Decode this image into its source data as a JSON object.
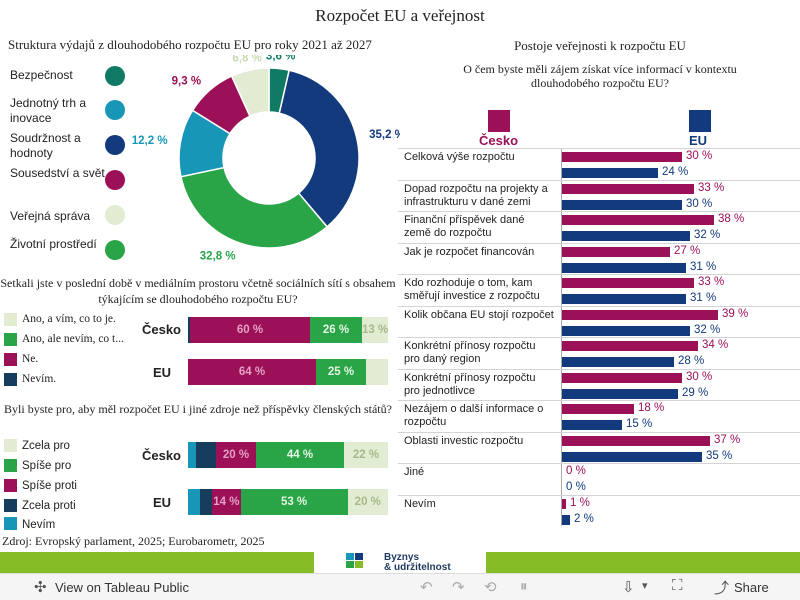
{
  "title": "Rozpočet EU a veřejnost",
  "colors": {
    "czech": "#9b1057",
    "eu": "#123a7c",
    "teal": "#117a65",
    "cyan": "#1896b8",
    "navy": "#123a7c",
    "maroon": "#9b1057",
    "pale": "#e2ecd2",
    "green": "#29a446",
    "dark": "#173d5c"
  },
  "donut": {
    "title": "Struktura výdajů z dlouhodobého rozpočtu EU pro roky 2021 až 2027",
    "legend": [
      "Bezpečnost",
      "Jednotný trh a inovace",
      "Soudržnost a hodnoty",
      "Sousedství a svět",
      "Veřejná správa",
      "Životní prostředí"
    ]
  },
  "media": {
    "question": "Setkali jste v poslední době v mediálním prostoru včetně sociálních sítí s obsahem týkajícím se dlouhodobého rozpočtu EU?",
    "legend": [
      "Ano, a vím, co to je.",
      "Ano, ale nevím, co t...",
      "Ne.",
      "Nevím."
    ],
    "rows": [
      "Česko",
      "EU"
    ]
  },
  "sources": {
    "question": "Byli byste pro, aby měl rozpočet EU i jiné zdroje než příspěvky členských států?",
    "legend": [
      "Zcela pro",
      "Spíše pro",
      "Spíše proti",
      "Zcela proti",
      "Nevím"
    ],
    "rows": [
      "Česko",
      "EU"
    ]
  },
  "right": {
    "title": "Postoje veřejnosti k rozpočtu EU",
    "subtitle": "O čem byste měli zájem získat více informací v kontextu dlouhodobého rozpočtu EU?",
    "legend": [
      "Česko",
      "EU"
    ]
  },
  "source_note": "Zdroj: Evropský parlament, 2025; Eurobarometr, 2025",
  "footer": {
    "logo_line1": "Byznys",
    "logo_line2": "& udržitelnost",
    "view_label": "View on Tableau Public",
    "share_label": "Share"
  },
  "chart_data": [
    {
      "type": "pie",
      "title": "Struktura výdajů z dlouhodobého rozpočtu EU pro roky 2021 až 2027",
      "categories": [
        "Bezpečnost",
        "Soudržnost a hodnoty",
        "Životní prostředí",
        "Jednotný trh a inovace",
        "Sousedství a svět",
        "Veřejná správa"
      ],
      "values": [
        3.6,
        35.2,
        32.8,
        12.2,
        9.3,
        6.8
      ],
      "labels": [
        "3,6 %",
        "35,2 %",
        "32,8 %",
        "12,2 %",
        "9,3 %",
        "6,8 %"
      ],
      "colors": [
        "#117a65",
        "#123a7c",
        "#29a446",
        "#1896b8",
        "#9b1057",
        "#e2ecd2"
      ],
      "label_colors": [
        "#117a65",
        "#123a7c",
        "#29a446",
        "#1896b8",
        "#9b1057",
        "#c9d9b2"
      ]
    },
    {
      "type": "bar",
      "stacked": true,
      "orientation": "horizontal",
      "title": "Setkali jste v poslední době v mediálním prostoru včetně sociálních sítí s obsahem týkajícím se dlouhodobého rozpočtu EU?",
      "categories": [
        "Česko",
        "EU"
      ],
      "series": [
        {
          "name": "Nevím.",
          "values": [
            1,
            0
          ],
          "labels": [
            "",
            ""
          ],
          "color": "#173d5c"
        },
        {
          "name": "Ne.",
          "values": [
            60,
            64
          ],
          "labels": [
            "60 %",
            "64 %"
          ],
          "color": "#9b1057"
        },
        {
          "name": "Ano, ale nevím, co t...",
          "values": [
            26,
            25
          ],
          "labels": [
            "26 %",
            "25 %"
          ],
          "color": "#29a446"
        },
        {
          "name": "Ano, a vím, co to je.",
          "values": [
            13,
            11
          ],
          "labels": [
            "13 %",
            ""
          ],
          "color": "#e2ecd2"
        }
      ]
    },
    {
      "type": "bar",
      "stacked": true,
      "orientation": "horizontal",
      "title": "Byli byste pro, aby měl rozpočet EU i jiné zdroje než příspěvky členských států?",
      "categories": [
        "Česko",
        "EU"
      ],
      "series": [
        {
          "name": "Nevím",
          "values": [
            4,
            6
          ],
          "labels": [
            "",
            ""
          ],
          "color": "#1896b8"
        },
        {
          "name": "Zcela proti",
          "values": [
            10,
            6
          ],
          "labels": [
            "",
            ""
          ],
          "color": "#173d5c"
        },
        {
          "name": "Spíše proti",
          "values": [
            20,
            14
          ],
          "labels": [
            "20 %",
            "14 %"
          ],
          "color": "#9b1057"
        },
        {
          "name": "Spíše pro",
          "values": [
            44,
            53
          ],
          "labels": [
            "44 %",
            "53 %"
          ],
          "color": "#29a446"
        },
        {
          "name": "Zcela pro",
          "values": [
            22,
            20
          ],
          "labels": [
            "22 %",
            "20 %"
          ],
          "color": "#e2ecd2"
        }
      ]
    },
    {
      "type": "bar",
      "orientation": "horizontal",
      "title": "O čem byste měli zájem získat více informací v kontextu dlouhodobého rozpočtu EU?",
      "categories": [
        "Celková výše rozpočtu",
        "Dopad rozpočtu na projekty a infrastrukturu v dané zemi",
        "Finanční příspěvek dané země do rozpočtu",
        "Jak je rozpočet financován",
        "Kdo rozhoduje o tom, kam směřují investice z rozpočtu",
        "Kolik občana EU stojí rozpočet",
        "Konkrétní přínosy rozpočtu pro daný region",
        "Konkrétní přínosy rozpočtu pro jednotlivce",
        "Nezájem o další informace o rozpočtu",
        "Oblasti investic rozpočtu",
        "Jiné",
        "Nevím"
      ],
      "series": [
        {
          "name": "Česko",
          "values": [
            30,
            33,
            38,
            27,
            33,
            39,
            34,
            30,
            18,
            37,
            0,
            1
          ],
          "labels": [
            "30 %",
            "33 %",
            "38 %",
            "27 %",
            "33 %",
            "39 %",
            "34 %",
            "30 %",
            "18 %",
            "37 %",
            "0 %",
            "1 %"
          ]
        },
        {
          "name": "EU",
          "values": [
            24,
            30,
            32,
            31,
            31,
            32,
            28,
            29,
            15,
            35,
            0,
            2
          ],
          "labels": [
            "24 %",
            "30 %",
            "32 %",
            "31 %",
            "31 %",
            "32 %",
            "28 %",
            "29 %",
            "15 %",
            "35 %",
            "0 %",
            "2 %"
          ]
        }
      ],
      "xlim": [
        0,
        40
      ]
    }
  ]
}
